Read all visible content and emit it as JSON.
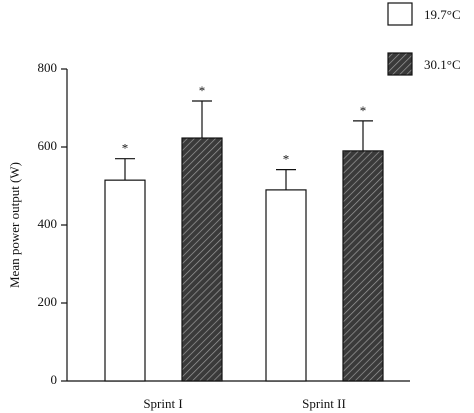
{
  "chart_data": {
    "type": "bar",
    "y_label": "Mean power output (W)",
    "categories": [
      "Sprint I",
      "Sprint II"
    ],
    "series": [
      {
        "name": "19.7°C",
        "color": "#ffffff",
        "hatch": false,
        "values": [
          515,
          490
        ],
        "errors": [
          55,
          52
        ],
        "markers": [
          "*",
          "*"
        ]
      },
      {
        "name": "30.1°C",
        "color": "#444444",
        "hatch": true,
        "values": [
          623,
          590
        ],
        "errors": [
          95,
          77
        ],
        "markers": [
          "*",
          "*"
        ]
      }
    ],
    "ylim": [
      0,
      800
    ],
    "yticks": [
      0,
      200,
      400,
      600,
      800
    ],
    "grid": false,
    "legend": "top-right"
  }
}
